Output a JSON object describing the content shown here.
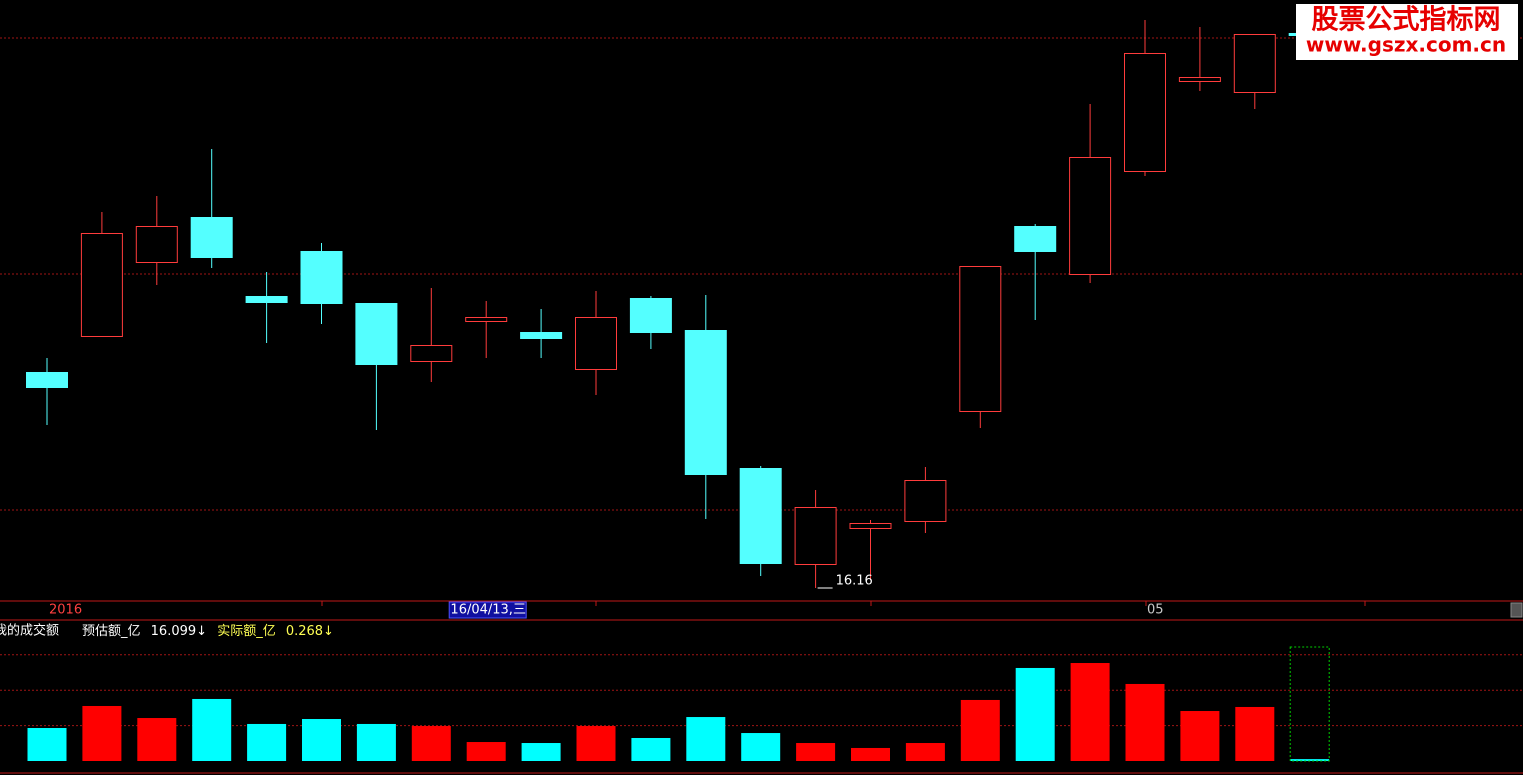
{
  "chart_data": {
    "type": "candlestick",
    "categories": [
      "2016",
      null,
      null,
      null,
      null,
      null,
      null,
      null,
      "16/04/13,三",
      null,
      null,
      null,
      null,
      null,
      null,
      null,
      null,
      null,
      null,
      null,
      "05",
      null,
      null,
      null
    ],
    "open": [
      18.32,
      18.68,
      19.42,
      19.87,
      19.08,
      19.53,
      19.01,
      18.43,
      18.83,
      18.72,
      18.35,
      19.06,
      18.74,
      17.36,
      16.4,
      16.76,
      16.83,
      17.93,
      19.78,
      19.3,
      20.33,
      21.23,
      21.12,
      21.71
    ],
    "high": [
      18.46,
      19.92,
      20.08,
      20.55,
      19.32,
      19.61,
      19.01,
      19.16,
      19.03,
      18.95,
      19.13,
      19.08,
      19.09,
      17.38,
      17.14,
      16.84,
      17.37,
      19.38,
      19.8,
      21.0,
      21.84,
      21.77,
      21.7,
      21.71
    ],
    "low": [
      17.79,
      18.68,
      19.19,
      19.36,
      18.61,
      18.8,
      17.74,
      18.22,
      18.46,
      18.46,
      18.09,
      18.55,
      16.85,
      16.28,
      16.16,
      16.24,
      16.71,
      17.76,
      18.84,
      19.21,
      20.28,
      21.13,
      20.95,
      21.69
    ],
    "close": [
      18.17,
      19.71,
      19.78,
      19.47,
      19.02,
      19.01,
      18.4,
      18.59,
      18.87,
      18.66,
      18.87,
      18.72,
      17.3,
      16.41,
      16.97,
      16.81,
      17.24,
      19.38,
      19.53,
      20.47,
      21.51,
      21.27,
      21.7,
      21.69
    ],
    "up_color": "#ff3c3c",
    "down_color": "#54ffff",
    "ylim": [
      16.04,
      22.04
    ],
    "gridlines": [
      21.66,
      19.3,
      16.94
    ],
    "highlighted_category": 8,
    "mark_low": true,
    "volume": {
      "title": "我的成交额",
      "indicators": [
        {
          "name": "预估额_亿",
          "text": "16.099↓",
          "color": "#ffffff"
        },
        {
          "name": "实际额_亿",
          "text": "0.268↓",
          "color": "#ffff54"
        }
      ],
      "values": [
        4.66,
        7.77,
        6.07,
        8.76,
        5.23,
        5.93,
        5.23,
        4.94,
        2.68,
        2.54,
        4.94,
        3.25,
        6.21,
        3.95,
        2.54,
        1.84,
        2.54,
        8.62,
        13.14,
        13.84,
        10.88,
        7.06,
        7.63,
        0.268
      ],
      "estimate": 16.099,
      "estimate_color": "#00cc00",
      "ylim": [
        0,
        20
      ],
      "gridlines": [
        5,
        10,
        15
      ],
      "up_color": "#ff0000",
      "down_color": "#00ffff"
    }
  },
  "watermark": {
    "title": "股票公式指标网",
    "url": "www.gszx.com.cn"
  }
}
